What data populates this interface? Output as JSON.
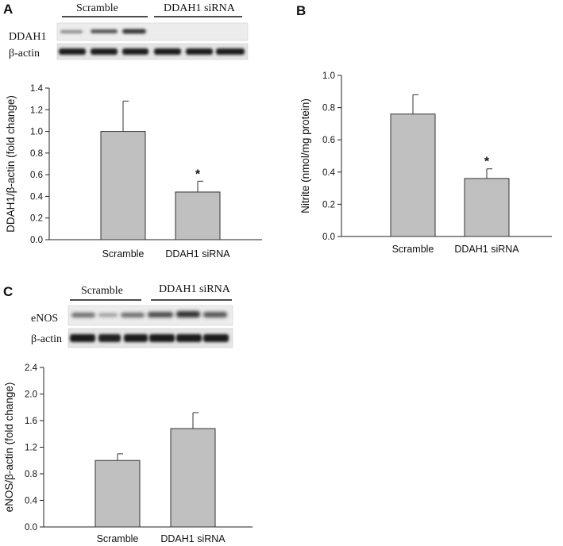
{
  "panels": {
    "a": {
      "letter": "A",
      "blot": {
        "groups": [
          "Scramble",
          "DDAH1 siRNA"
        ],
        "rows": [
          "DDAH1",
          "β-actin"
        ]
      }
    },
    "b": {
      "letter": "B"
    },
    "c": {
      "letter": "C",
      "blot": {
        "groups": [
          "Scramble",
          "DDAH1 siRNA"
        ],
        "rows": [
          "eNOS",
          "β-actin"
        ]
      }
    }
  },
  "chart_data": [
    {
      "panel": "A",
      "type": "bar",
      "categories": [
        "Scramble",
        "DDAH1 siRNA"
      ],
      "values": [
        1.0,
        0.44
      ],
      "errors": [
        0.28,
        0.1
      ],
      "annotations": [
        "",
        "*"
      ],
      "title": "",
      "xlabel": "",
      "ylabel": "DDAH1/β-actin (fold change)",
      "ylim": [
        0,
        1.4
      ],
      "yticks": [
        "0.0",
        "0.2",
        "0.4",
        "0.6",
        "0.8",
        "1.0",
        "1.2",
        "1.4"
      ],
      "grid": false,
      "colors": {
        "bar": "#c0c0c0",
        "edge": "#333333"
      }
    },
    {
      "panel": "B",
      "type": "bar",
      "categories": [
        "Scramble",
        "DDAH1 siRNA"
      ],
      "values": [
        0.76,
        0.36
      ],
      "errors": [
        0.12,
        0.06
      ],
      "annotations": [
        "",
        "*"
      ],
      "title": "",
      "xlabel": "",
      "ylabel": "Nitrite (nmol/mg protein)",
      "ylim": [
        0,
        1.0
      ],
      "yticks": [
        "0.0",
        "0.2",
        "0.4",
        "0.6",
        "0.8",
        "1.0"
      ],
      "grid": false,
      "colors": {
        "bar": "#c0c0c0",
        "edge": "#333333"
      }
    },
    {
      "panel": "C",
      "type": "bar",
      "categories": [
        "Scramble",
        "DDAH1 siRNA"
      ],
      "values": [
        1.0,
        1.48
      ],
      "errors": [
        0.1,
        0.24
      ],
      "annotations": [
        "",
        ""
      ],
      "title": "",
      "xlabel": "",
      "ylabel": "eNOS/β-actin (fold change)",
      "ylim": [
        0,
        2.4
      ],
      "yticks": [
        "0.0",
        "0.4",
        "0.8",
        "1.2",
        "1.6",
        "2.0",
        "2.4"
      ],
      "grid": false,
      "colors": {
        "bar": "#c0c0c0",
        "edge": "#333333"
      }
    }
  ]
}
